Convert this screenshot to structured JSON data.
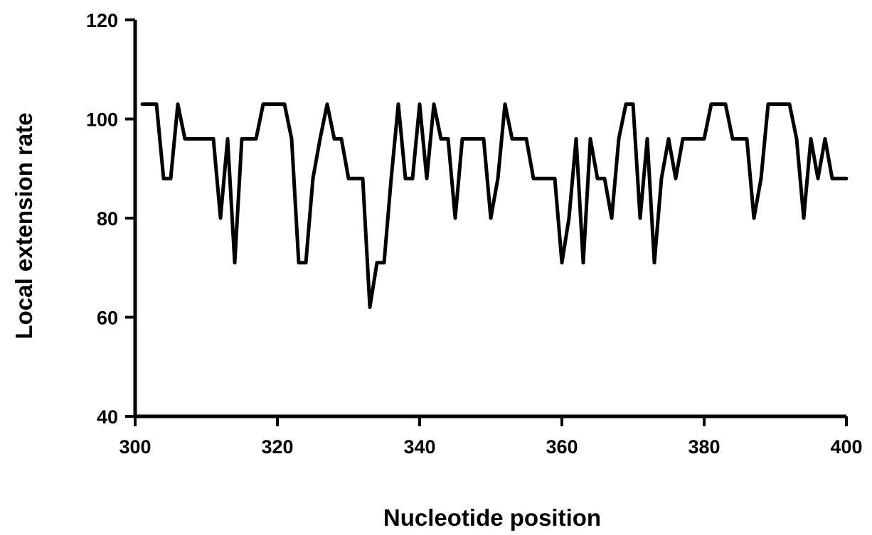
{
  "chart_data": {
    "type": "line",
    "title": "",
    "xlabel": "Nucleotide position",
    "ylabel": "Local extension rate",
    "xlim": [
      300,
      400
    ],
    "ylim": [
      40,
      120
    ],
    "xticks": [
      300,
      320,
      340,
      360,
      380,
      400
    ],
    "yticks": [
      40,
      60,
      80,
      100,
      120
    ],
    "grid": false,
    "legend": "none",
    "line_color": "#000000",
    "series": [
      {
        "x": [
          301,
          302,
          303,
          304,
          305,
          306,
          307,
          308,
          309,
          310,
          311,
          312,
          313,
          314,
          315,
          316,
          317,
          318,
          319,
          320,
          321,
          322,
          323,
          324,
          325,
          326,
          327,
          328,
          329,
          330,
          331,
          332,
          333,
          334,
          335,
          336,
          337,
          338,
          339,
          340,
          341,
          342,
          343,
          344,
          345,
          346,
          347,
          348,
          349,
          350,
          351,
          352,
          353,
          354,
          355,
          356,
          357,
          358,
          359,
          360,
          361,
          362,
          363,
          364,
          365,
          366,
          367,
          368,
          369,
          370,
          371,
          372,
          373,
          374,
          375,
          376,
          377,
          378,
          379,
          380,
          381,
          382,
          383,
          384,
          385,
          386,
          387,
          388,
          389,
          390,
          391,
          392,
          393,
          394,
          395,
          396,
          397,
          398,
          399,
          400
        ],
        "y": [
          103,
          103,
          103,
          88,
          88,
          103,
          96,
          96,
          96,
          96,
          96,
          80,
          96,
          71,
          96,
          96,
          96,
          103,
          103,
          103,
          103,
          96,
          71,
          71,
          88,
          96,
          103,
          96,
          96,
          88,
          88,
          88,
          62,
          71,
          71,
          88,
          103,
          88,
          88,
          103,
          88,
          103,
          96,
          96,
          80,
          96,
          96,
          96,
          96,
          80,
          88,
          103,
          96,
          96,
          96,
          88,
          88,
          88,
          88,
          71,
          80,
          96,
          71,
          96,
          88,
          88,
          80,
          96,
          103,
          103,
          80,
          96,
          71,
          88,
          96,
          88,
          96,
          96,
          96,
          96,
          103,
          103,
          103,
          96,
          96,
          96,
          80,
          88,
          103,
          103,
          103,
          103,
          96,
          80,
          96,
          88,
          96,
          88,
          88,
          88
        ]
      }
    ]
  }
}
